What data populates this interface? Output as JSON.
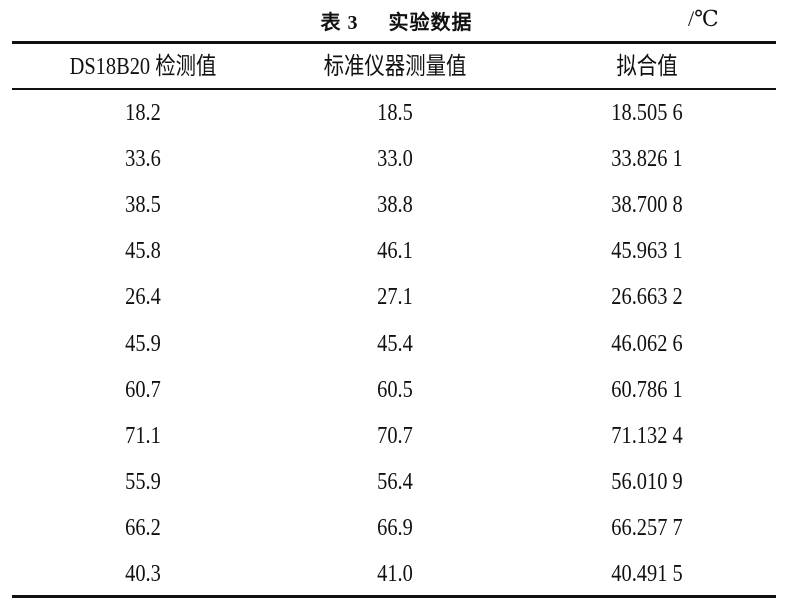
{
  "table": {
    "title_number": "表 3",
    "title": "实验数据",
    "unit": "/℃",
    "headers": [
      "DS18B20 检测值",
      "标准仪器测量值",
      "拟合值"
    ],
    "rows": [
      [
        "18.2",
        "18.5",
        "18.505 6"
      ],
      [
        "33.6",
        "33.0",
        "33.826 1"
      ],
      [
        "38.5",
        "38.8",
        "38.700 8"
      ],
      [
        "45.8",
        "46.1",
        "45.963 1"
      ],
      [
        "26.4",
        "27.1",
        "26.663 2"
      ],
      [
        "45.9",
        "45.4",
        "46.062 6"
      ],
      [
        "60.7",
        "60.5",
        "60.786 1"
      ],
      [
        "71.1",
        "70.7",
        "71.132 4"
      ],
      [
        "55.9",
        "56.4",
        "56.010 9"
      ],
      [
        "66.2",
        "66.9",
        "66.257 7"
      ],
      [
        "40.3",
        "41.0",
        "40.491 5"
      ]
    ]
  }
}
